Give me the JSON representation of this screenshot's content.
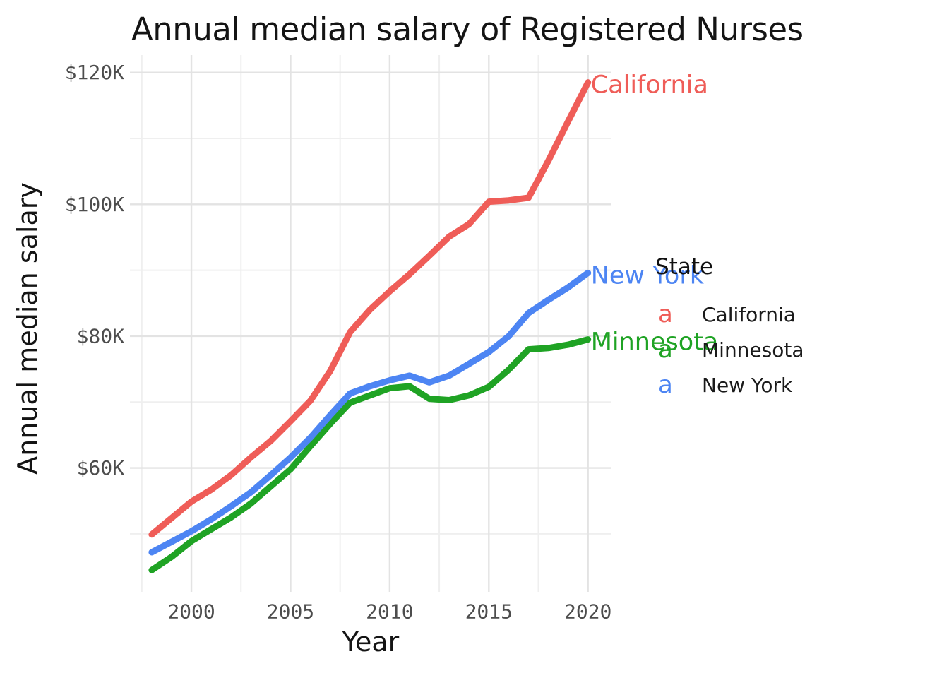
{
  "figure": {
    "title": "Annual median salary of Registered Nurses"
  },
  "axes": {
    "x_label": "Year",
    "y_label": "Annual median salary"
  },
  "legend": {
    "title": "State",
    "key_glyph": "a",
    "entries": [
      {
        "label": "California",
        "color": "#EF5D58"
      },
      {
        "label": "Minnesota",
        "color": "#1FA324"
      },
      {
        "label": "New York",
        "color": "#4D85F3"
      }
    ]
  },
  "colors": {
    "background": "#FFFFFF",
    "grid_major": "#E3E3E3",
    "grid_minor": "#EFEFEF",
    "tick_label": "#4D4D4D",
    "text": "#141414"
  },
  "chart_data": {
    "type": "line",
    "title": "Annual median salary of Registered Nurses",
    "xlabel": "Year",
    "ylabel": "Annual median salary",
    "unit": "USD thousands per year",
    "grid": "major and minor gridlines, light gray, no axis lines, no tick marks",
    "legend_position": "right",
    "direct_line_labels": true,
    "x": [
      1998,
      1999,
      2000,
      2001,
      2002,
      2003,
      2004,
      2005,
      2006,
      2007,
      2008,
      2009,
      2010,
      2011,
      2012,
      2013,
      2014,
      2015,
      2016,
      2017,
      2018,
      2019,
      2020
    ],
    "series": [
      {
        "name": "California",
        "color": "#EF5D58",
        "values": [
          49.9,
          52.4,
          54.9,
          56.7,
          58.9,
          61.6,
          64.1,
          67.1,
          70.2,
          74.7,
          80.6,
          84.0,
          86.8,
          89.4,
          92.2,
          95.1,
          97.0,
          100.4,
          100.6,
          101.0,
          106.6,
          112.6,
          118.5
        ]
      },
      {
        "name": "Minnesota",
        "color": "#1FA324",
        "values": [
          44.5,
          46.5,
          48.9,
          50.7,
          52.5,
          54.6,
          57.2,
          59.8,
          63.3,
          66.7,
          69.9,
          71.0,
          72.1,
          72.4,
          70.5,
          70.3,
          71.0,
          72.3,
          74.9,
          78.0,
          78.2,
          78.7,
          79.5
        ]
      },
      {
        "name": "New York",
        "color": "#4D85F3",
        "values": [
          47.2,
          48.8,
          50.4,
          52.2,
          54.2,
          56.3,
          58.9,
          61.6,
          64.6,
          68.0,
          71.3,
          72.4,
          73.3,
          74.0,
          73.0,
          74.0,
          75.8,
          77.6,
          80.0,
          83.5,
          85.5,
          87.4,
          89.6
        ]
      }
    ],
    "x_ticks": [
      2000,
      2005,
      2010,
      2015,
      2020
    ],
    "x_minor_ticks": [
      1997.5,
      2002.5,
      2007.5,
      2012.5,
      2017.5
    ],
    "y_ticks": [
      {
        "value": 60,
        "label": "$60K"
      },
      {
        "value": 80,
        "label": "$80K"
      },
      {
        "value": 100,
        "label": "$100K"
      },
      {
        "value": 120,
        "label": "$120K"
      }
    ],
    "y_minor_ticks": [
      50,
      70,
      90,
      110
    ],
    "xlim": [
      1996.9,
      2021.15
    ],
    "ylim": [
      41.2,
      122.65
    ]
  }
}
